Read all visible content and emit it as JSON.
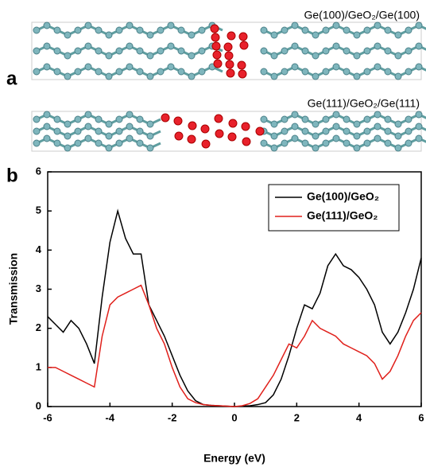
{
  "panel_labels": [
    "a",
    "b"
  ],
  "structure_labels": [
    "Ge(100)/GeO₂/Ge(100)",
    "Ge(111)/GeO₂/Ge(111)"
  ],
  "chart_data": {
    "type": "line",
    "x_label": "Energy (eV)",
    "y_label": "Transmission",
    "x": [
      -6,
      -5.75,
      -5.5,
      -5.25,
      -5,
      -4.75,
      -4.5,
      -4.25,
      -4,
      -3.75,
      -3.5,
      -3.25,
      -3,
      -2.75,
      -2.5,
      -2.25,
      -2,
      -1.75,
      -1.5,
      -1.25,
      -1,
      -0.75,
      -0.5,
      -0.25,
      0,
      0.25,
      0.5,
      0.75,
      1,
      1.25,
      1.5,
      1.75,
      2,
      2.25,
      2.5,
      2.75,
      3,
      3.25,
      3.5,
      3.75,
      4,
      4.25,
      4.5,
      4.75,
      5,
      5.25,
      5.5,
      5.75,
      6
    ],
    "series": [
      {
        "name": "Ge(100)/GeO₂",
        "color": "#000000",
        "values": [
          2.3,
          2.1,
          1.9,
          2.2,
          2.0,
          1.6,
          1.1,
          2.8,
          4.2,
          5.0,
          4.3,
          3.9,
          3.9,
          2.6,
          2.2,
          1.8,
          1.3,
          0.8,
          0.4,
          0.15,
          0.05,
          0.03,
          0.02,
          0.01,
          0.0,
          0.01,
          0.02,
          0.05,
          0.1,
          0.3,
          0.7,
          1.3,
          2.0,
          2.6,
          2.5,
          2.9,
          3.6,
          3.9,
          3.6,
          3.5,
          3.3,
          3.0,
          2.6,
          1.9,
          1.6,
          1.9,
          2.4,
          3.0,
          3.8
        ]
      },
      {
        "name": "Ge(111)/GeO₂",
        "color": "#e0201b",
        "values": [
          1.0,
          1.0,
          0.9,
          0.8,
          0.7,
          0.6,
          0.5,
          1.8,
          2.6,
          2.8,
          2.9,
          3.0,
          3.1,
          2.6,
          2.0,
          1.6,
          1.0,
          0.5,
          0.2,
          0.1,
          0.05,
          0.03,
          0.02,
          0.01,
          0.0,
          0.02,
          0.08,
          0.2,
          0.5,
          0.8,
          1.2,
          1.6,
          1.5,
          1.8,
          2.2,
          2.0,
          1.9,
          1.8,
          1.6,
          1.5,
          1.4,
          1.3,
          1.1,
          0.7,
          0.9,
          1.3,
          1.8,
          2.2,
          2.4
        ]
      }
    ],
    "xlim": [
      -6,
      6
    ],
    "ylim": [
      0,
      6
    ],
    "xticks": [
      -6,
      -4,
      -2,
      0,
      2,
      4,
      6
    ],
    "yticks": [
      0,
      1,
      2,
      3,
      4,
      5,
      6
    ],
    "legend": "upper right",
    "grid": false
  }
}
